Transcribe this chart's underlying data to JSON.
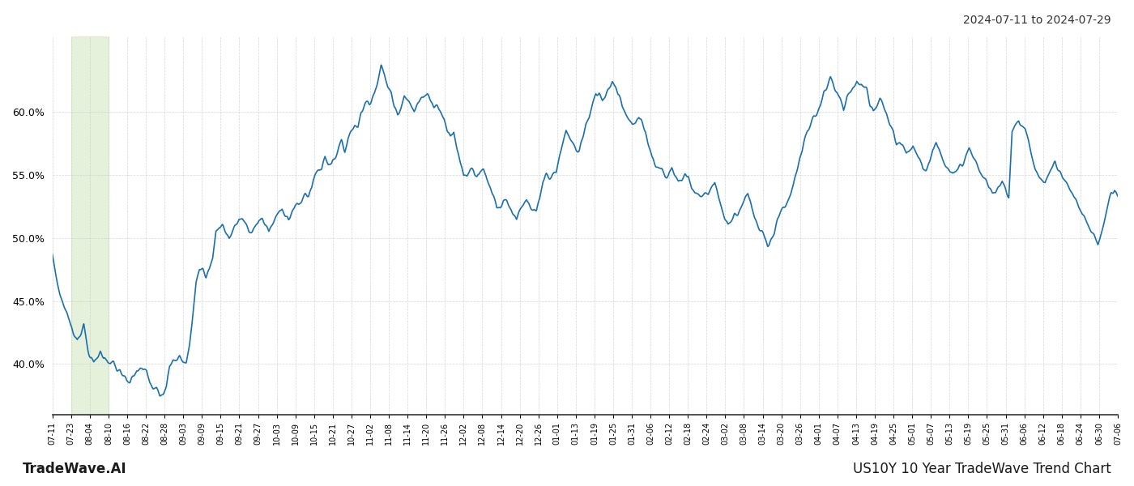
{
  "title_top_right": "2024-07-11 to 2024-07-29",
  "footer_left": "TradeWave.AI",
  "footer_right": "US10Y 10 Year TradeWave Trend Chart",
  "line_color": "#1a6faf",
  "line_width": 1.2,
  "shading_color": "#d4e8c2",
  "shading_alpha": 0.6,
  "background_color": "#ffffff",
  "grid_color": "#cccccc",
  "ylim": [
    36,
    66
  ],
  "yticks": [
    40.0,
    45.0,
    50.0,
    55.0,
    60.0
  ],
  "x_labels": [
    "07-11",
    "07-23",
    "08-04",
    "08-10",
    "08-16",
    "08-22",
    "08-28",
    "09-03",
    "09-09",
    "09-15",
    "09-21",
    "09-27",
    "10-03",
    "10-09",
    "10-15",
    "10-21",
    "10-27",
    "11-02",
    "11-08",
    "11-14",
    "11-20",
    "11-26",
    "12-02",
    "12-08",
    "12-14",
    "12-20",
    "12-26",
    "01-01",
    "01-13",
    "01-19",
    "01-25",
    "01-31",
    "02-06",
    "02-12",
    "02-18",
    "02-24",
    "03-02",
    "03-08",
    "03-14",
    "03-20",
    "03-26",
    "04-01",
    "04-07",
    "04-13",
    "04-19",
    "04-25",
    "05-01",
    "05-07",
    "05-13",
    "05-19",
    "05-25",
    "05-31",
    "06-06",
    "06-12",
    "06-18",
    "06-24",
    "06-30",
    "07-06"
  ],
  "shading_xstart_label": 1,
  "shading_xend_label": 3,
  "waypoints": [
    [
      0,
      48.5
    ],
    [
      3,
      47.5
    ],
    [
      6,
      46.5
    ],
    [
      9,
      45.5
    ],
    [
      12,
      45.0
    ],
    [
      15,
      44.5
    ],
    [
      18,
      44.0
    ],
    [
      22,
      43.0
    ],
    [
      26,
      42.5
    ],
    [
      30,
      42.0
    ],
    [
      34,
      42.5
    ],
    [
      38,
      43.0
    ],
    [
      42,
      41.5
    ],
    [
      46,
      40.5
    ],
    [
      50,
      40.0
    ],
    [
      54,
      40.5
    ],
    [
      58,
      41.0
    ],
    [
      62,
      40.5
    ],
    [
      66,
      40.5
    ],
    [
      70,
      40.0
    ],
    [
      74,
      40.0
    ],
    [
      78,
      39.5
    ],
    [
      82,
      39.5
    ],
    [
      86,
      39.0
    ],
    [
      90,
      38.5
    ],
    [
      94,
      38.5
    ],
    [
      98,
      39.0
    ],
    [
      102,
      39.5
    ],
    [
      106,
      39.5
    ],
    [
      110,
      39.5
    ],
    [
      114,
      39.5
    ],
    [
      118,
      38.5
    ],
    [
      122,
      38.0
    ],
    [
      126,
      38.0
    ],
    [
      130,
      37.5
    ],
    [
      134,
      37.8
    ],
    [
      138,
      38.5
    ],
    [
      142,
      40.0
    ],
    [
      146,
      40.5
    ],
    [
      150,
      40.5
    ],
    [
      154,
      40.5
    ],
    [
      158,
      40.0
    ],
    [
      162,
      40.0
    ],
    [
      166,
      41.5
    ],
    [
      170,
      44.0
    ],
    [
      174,
      46.5
    ],
    [
      178,
      47.5
    ],
    [
      182,
      47.5
    ],
    [
      186,
      47.0
    ],
    [
      190,
      47.5
    ],
    [
      194,
      48.5
    ],
    [
      198,
      50.5
    ],
    [
      202,
      51.0
    ],
    [
      206,
      51.0
    ],
    [
      210,
      50.5
    ],
    [
      214,
      50.0
    ],
    [
      218,
      50.5
    ],
    [
      222,
      51.0
    ],
    [
      226,
      51.5
    ],
    [
      230,
      51.5
    ],
    [
      234,
      51.0
    ],
    [
      238,
      50.5
    ],
    [
      242,
      50.5
    ],
    [
      246,
      51.0
    ],
    [
      250,
      51.5
    ],
    [
      254,
      51.5
    ],
    [
      258,
      51.0
    ],
    [
      262,
      50.5
    ],
    [
      266,
      51.0
    ],
    [
      270,
      51.5
    ],
    [
      274,
      52.0
    ],
    [
      278,
      52.5
    ],
    [
      282,
      52.0
    ],
    [
      286,
      51.5
    ],
    [
      290,
      52.0
    ],
    [
      294,
      52.5
    ],
    [
      298,
      52.5
    ],
    [
      302,
      53.0
    ],
    [
      306,
      53.5
    ],
    [
      310,
      53.5
    ],
    [
      314,
      54.0
    ],
    [
      318,
      55.0
    ],
    [
      322,
      55.5
    ],
    [
      326,
      55.5
    ],
    [
      330,
      56.5
    ],
    [
      334,
      56.0
    ],
    [
      338,
      56.0
    ],
    [
      342,
      56.5
    ],
    [
      346,
      57.0
    ],
    [
      350,
      57.5
    ],
    [
      354,
      57.0
    ],
    [
      358,
      58.0
    ],
    [
      362,
      58.5
    ],
    [
      366,
      59.0
    ],
    [
      370,
      59.0
    ],
    [
      374,
      60.0
    ],
    [
      378,
      60.5
    ],
    [
      382,
      61.0
    ],
    [
      386,
      61.0
    ],
    [
      390,
      61.5
    ],
    [
      394,
      62.5
    ],
    [
      398,
      63.5
    ],
    [
      402,
      63.0
    ],
    [
      406,
      62.0
    ],
    [
      410,
      61.5
    ],
    [
      414,
      60.5
    ],
    [
      418,
      60.0
    ],
    [
      422,
      60.5
    ],
    [
      426,
      61.5
    ],
    [
      430,
      61.0
    ],
    [
      434,
      60.5
    ],
    [
      438,
      60.0
    ],
    [
      442,
      60.5
    ],
    [
      446,
      61.0
    ],
    [
      450,
      61.5
    ],
    [
      454,
      61.5
    ],
    [
      458,
      61.0
    ],
    [
      462,
      60.5
    ],
    [
      466,
      60.5
    ],
    [
      470,
      60.0
    ],
    [
      474,
      59.5
    ],
    [
      478,
      58.5
    ],
    [
      482,
      58.0
    ],
    [
      486,
      58.5
    ],
    [
      490,
      57.0
    ],
    [
      494,
      56.0
    ],
    [
      498,
      55.0
    ],
    [
      502,
      55.0
    ],
    [
      506,
      55.5
    ],
    [
      510,
      55.5
    ],
    [
      514,
      55.0
    ],
    [
      518,
      55.5
    ],
    [
      522,
      55.5
    ],
    [
      526,
      54.5
    ],
    [
      530,
      54.0
    ],
    [
      534,
      53.5
    ],
    [
      538,
      52.5
    ],
    [
      542,
      52.5
    ],
    [
      546,
      53.0
    ],
    [
      550,
      53.0
    ],
    [
      554,
      52.5
    ],
    [
      558,
      52.0
    ],
    [
      562,
      51.5
    ],
    [
      566,
      52.0
    ],
    [
      570,
      52.5
    ],
    [
      574,
      53.0
    ],
    [
      578,
      52.5
    ],
    [
      582,
      52.0
    ],
    [
      586,
      52.0
    ],
    [
      590,
      53.0
    ],
    [
      594,
      54.5
    ],
    [
      598,
      55.0
    ],
    [
      602,
      55.0
    ],
    [
      606,
      55.0
    ],
    [
      610,
      55.0
    ],
    [
      614,
      56.5
    ],
    [
      618,
      57.5
    ],
    [
      622,
      58.5
    ],
    [
      626,
      58.0
    ],
    [
      630,
      57.5
    ],
    [
      634,
      57.0
    ],
    [
      638,
      57.0
    ],
    [
      642,
      58.0
    ],
    [
      646,
      59.0
    ],
    [
      650,
      59.5
    ],
    [
      654,
      60.5
    ],
    [
      658,
      61.5
    ],
    [
      662,
      61.5
    ],
    [
      666,
      61.0
    ],
    [
      670,
      61.5
    ],
    [
      674,
      62.0
    ],
    [
      678,
      62.5
    ],
    [
      682,
      62.0
    ],
    [
      686,
      61.5
    ],
    [
      690,
      60.5
    ],
    [
      694,
      60.0
    ],
    [
      698,
      59.5
    ],
    [
      702,
      59.0
    ],
    [
      706,
      59.0
    ],
    [
      710,
      59.5
    ],
    [
      714,
      59.0
    ],
    [
      718,
      58.5
    ],
    [
      722,
      57.5
    ],
    [
      726,
      56.5
    ],
    [
      730,
      56.0
    ],
    [
      734,
      55.5
    ],
    [
      738,
      55.5
    ],
    [
      742,
      55.0
    ],
    [
      746,
      55.0
    ],
    [
      750,
      55.5
    ],
    [
      754,
      55.0
    ],
    [
      758,
      54.5
    ],
    [
      762,
      54.5
    ],
    [
      766,
      55.0
    ],
    [
      770,
      55.0
    ],
    [
      774,
      54.0
    ],
    [
      778,
      53.5
    ],
    [
      782,
      53.5
    ],
    [
      786,
      53.5
    ],
    [
      790,
      53.5
    ],
    [
      794,
      53.5
    ],
    [
      798,
      54.0
    ],
    [
      802,
      54.5
    ],
    [
      806,
      53.5
    ],
    [
      810,
      52.5
    ],
    [
      814,
      51.5
    ],
    [
      818,
      51.0
    ],
    [
      822,
      51.5
    ],
    [
      826,
      52.0
    ],
    [
      830,
      52.0
    ],
    [
      834,
      52.5
    ],
    [
      838,
      53.0
    ],
    [
      842,
      53.5
    ],
    [
      846,
      52.5
    ],
    [
      850,
      51.5
    ],
    [
      854,
      51.0
    ],
    [
      858,
      50.5
    ],
    [
      862,
      50.0
    ],
    [
      866,
      49.5
    ],
    [
      870,
      50.0
    ],
    [
      874,
      50.5
    ],
    [
      878,
      51.5
    ],
    [
      882,
      52.0
    ],
    [
      886,
      52.5
    ],
    [
      890,
      53.0
    ],
    [
      894,
      53.5
    ],
    [
      898,
      54.5
    ],
    [
      902,
      55.5
    ],
    [
      906,
      56.5
    ],
    [
      910,
      57.5
    ],
    [
      914,
      58.5
    ],
    [
      918,
      59.0
    ],
    [
      922,
      59.5
    ],
    [
      926,
      60.0
    ],
    [
      930,
      60.5
    ],
    [
      934,
      61.5
    ],
    [
      938,
      62.0
    ],
    [
      942,
      62.5
    ],
    [
      946,
      62.0
    ],
    [
      950,
      61.5
    ],
    [
      954,
      61.0
    ],
    [
      958,
      60.0
    ],
    [
      962,
      61.0
    ],
    [
      966,
      61.5
    ],
    [
      970,
      62.0
    ],
    [
      974,
      62.5
    ],
    [
      978,
      62.0
    ],
    [
      982,
      62.0
    ],
    [
      986,
      61.5
    ],
    [
      990,
      60.5
    ],
    [
      994,
      60.0
    ],
    [
      998,
      60.5
    ],
    [
      1002,
      61.0
    ],
    [
      1006,
      60.5
    ],
    [
      1010,
      60.0
    ],
    [
      1014,
      59.0
    ],
    [
      1018,
      58.5
    ],
    [
      1022,
      57.5
    ],
    [
      1026,
      57.5
    ],
    [
      1030,
      57.0
    ],
    [
      1034,
      56.5
    ],
    [
      1038,
      57.0
    ],
    [
      1042,
      57.5
    ],
    [
      1046,
      57.0
    ],
    [
      1050,
      56.5
    ],
    [
      1054,
      55.5
    ],
    [
      1058,
      55.5
    ],
    [
      1062,
      56.0
    ],
    [
      1066,
      57.0
    ],
    [
      1070,
      57.5
    ],
    [
      1074,
      57.0
    ],
    [
      1078,
      56.5
    ],
    [
      1082,
      56.0
    ],
    [
      1086,
      55.5
    ],
    [
      1090,
      55.0
    ],
    [
      1094,
      55.0
    ],
    [
      1098,
      55.5
    ],
    [
      1102,
      56.0
    ],
    [
      1106,
      56.5
    ],
    [
      1110,
      57.0
    ],
    [
      1114,
      56.5
    ],
    [
      1118,
      56.0
    ],
    [
      1122,
      55.5
    ],
    [
      1126,
      55.0
    ],
    [
      1130,
      54.5
    ],
    [
      1134,
      54.0
    ],
    [
      1138,
      53.5
    ],
    [
      1142,
      53.5
    ],
    [
      1146,
      54.0
    ],
    [
      1150,
      54.5
    ],
    [
      1154,
      54.0
    ],
    [
      1158,
      53.5
    ],
    [
      1162,
      58.5
    ],
    [
      1166,
      59.0
    ],
    [
      1170,
      59.5
    ],
    [
      1174,
      59.0
    ],
    [
      1178,
      58.5
    ],
    [
      1182,
      57.5
    ],
    [
      1186,
      56.5
    ],
    [
      1190,
      55.5
    ],
    [
      1194,
      55.0
    ],
    [
      1198,
      54.5
    ],
    [
      1202,
      54.5
    ],
    [
      1206,
      55.0
    ],
    [
      1210,
      55.5
    ],
    [
      1214,
      56.0
    ],
    [
      1218,
      55.5
    ],
    [
      1222,
      55.0
    ],
    [
      1226,
      54.5
    ],
    [
      1230,
      54.0
    ],
    [
      1234,
      53.5
    ],
    [
      1238,
      53.0
    ],
    [
      1242,
      52.5
    ],
    [
      1246,
      52.0
    ],
    [
      1250,
      51.5
    ],
    [
      1254,
      51.0
    ],
    [
      1258,
      50.5
    ],
    [
      1262,
      50.0
    ],
    [
      1266,
      49.5
    ],
    [
      1270,
      50.5
    ],
    [
      1274,
      51.5
    ],
    [
      1278,
      52.5
    ],
    [
      1282,
      53.5
    ],
    [
      1286,
      54.0
    ],
    [
      1290,
      53.5
    ]
  ]
}
